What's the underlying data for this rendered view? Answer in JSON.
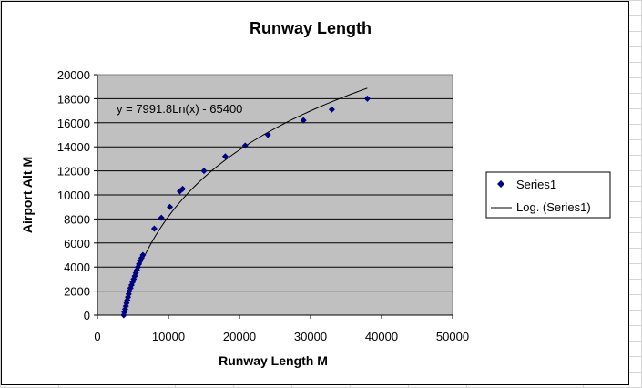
{
  "chart_data": {
    "type": "scatter",
    "title": "Runway Length",
    "xlabel": "Runway Length M",
    "ylabel": "Airport Alt M",
    "xlim": [
      0,
      50000
    ],
    "ylim": [
      0,
      20000
    ],
    "xticks": [
      0,
      10000,
      20000,
      30000,
      40000,
      50000
    ],
    "yticks": [
      0,
      2000,
      4000,
      6000,
      8000,
      10000,
      12000,
      14000,
      16000,
      18000,
      20000
    ],
    "grid": "horizontal",
    "legend_position": "right",
    "plot_background": "#c0c0c0",
    "series": [
      {
        "name": "Series1",
        "marker": "diamond",
        "color": "#000080",
        "points": [
          [
            3700,
            0
          ],
          [
            3800,
            250
          ],
          [
            3900,
            500
          ],
          [
            4000,
            750
          ],
          [
            4100,
            1000
          ],
          [
            4200,
            1250
          ],
          [
            4300,
            1500
          ],
          [
            4400,
            1750
          ],
          [
            4500,
            2000
          ],
          [
            4650,
            2250
          ],
          [
            4800,
            2500
          ],
          [
            4950,
            2750
          ],
          [
            5100,
            3000
          ],
          [
            5250,
            3250
          ],
          [
            5400,
            3500
          ],
          [
            5550,
            3750
          ],
          [
            5700,
            4000
          ],
          [
            5850,
            4250
          ],
          [
            6000,
            4500
          ],
          [
            6200,
            4750
          ],
          [
            6400,
            5000
          ],
          [
            8000,
            7200
          ],
          [
            9000,
            8100
          ],
          [
            10200,
            9000
          ],
          [
            11600,
            10300
          ],
          [
            12000,
            10500
          ],
          [
            15000,
            12000
          ],
          [
            18000,
            13200
          ],
          [
            20800,
            14100
          ],
          [
            24000,
            15000
          ],
          [
            29000,
            16200
          ],
          [
            33000,
            17100
          ],
          [
            38000,
            18000
          ]
        ]
      }
    ],
    "trendline": {
      "name": "Log. (Series1)",
      "type": "logarithmic",
      "equation": "y = 7991.8Ln(x) - 65400",
      "a": 7991.8,
      "b": -65400,
      "x_range": [
        3600,
        38000
      ],
      "color": "#000000"
    }
  }
}
